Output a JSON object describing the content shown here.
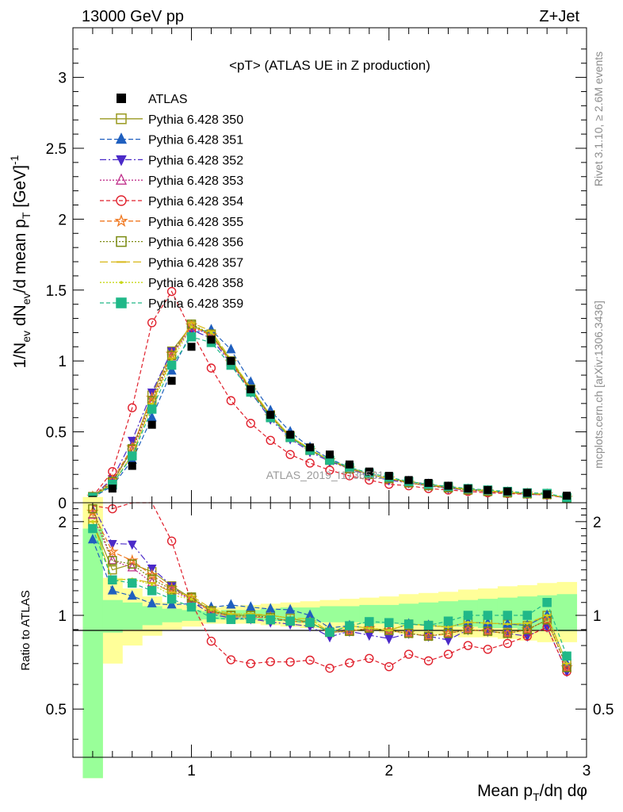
{
  "header": {
    "energy": "13000 GeV pp",
    "process": "Z+Jet"
  },
  "side_labels": {
    "rivet": "Rivet 3.1.10, ≥ 2.6M events",
    "mcplots": "mcplots.cern.ch [arXiv:1306.3436]"
  },
  "chart_data": [
    {
      "type": "line",
      "title": "<pT> (ATLAS UE in Z production)",
      "watermark": "ATLAS_2019_I1736531",
      "xlabel": "Mean p_T/dη dφ",
      "ylabel": "1/N_ev dN_ev/d mean p_T [GeV]^-1",
      "xlim": [
        0.4,
        3.0
      ],
      "ylim": [
        0,
        3.35
      ],
      "yticks": [
        "0",
        "0.5",
        "1",
        "1.5",
        "2",
        "2.5",
        "3"
      ],
      "xticks": [
        "1",
        "2",
        "3"
      ],
      "legend_position": "top-left",
      "x": [
        0.5,
        0.6,
        0.7,
        0.8,
        0.9,
        1.0,
        1.1,
        1.2,
        1.3,
        1.4,
        1.5,
        1.6,
        1.7,
        1.8,
        1.9,
        2.0,
        2.1,
        2.2,
        2.3,
        2.4,
        2.5,
        2.6,
        2.7,
        2.8,
        2.9
      ],
      "reference": {
        "name": "ATLAS",
        "color": "#000000",
        "values": [
          0.02,
          0.1,
          0.26,
          0.55,
          0.86,
          1.1,
          1.15,
          1.0,
          0.8,
          0.62,
          0.48,
          0.39,
          0.34,
          0.27,
          0.22,
          0.19,
          0.16,
          0.14,
          0.12,
          0.1,
          0.09,
          0.08,
          0.07,
          0.06,
          0.05
        ]
      },
      "series": [
        {
          "name": "Pythia 6.428 350",
          "color": "#9a9a20",
          "marker": "open-square",
          "dash": "",
          "values": [
            0.04,
            0.14,
            0.38,
            0.76,
            1.07,
            1.25,
            1.19,
            1.0,
            0.8,
            0.62,
            0.47,
            0.37,
            0.3,
            0.24,
            0.2,
            0.17,
            0.15,
            0.13,
            0.11,
            0.095,
            0.085,
            0.075,
            0.065,
            0.06,
            0.035
          ]
        },
        {
          "name": "Pythia 6.428 351",
          "color": "#1f5fbf",
          "marker": "triangle-up",
          "dash": "6,3",
          "values": [
            0.035,
            0.12,
            0.3,
            0.6,
            0.93,
            1.2,
            1.22,
            1.08,
            0.85,
            0.65,
            0.5,
            0.39,
            0.31,
            0.25,
            0.2,
            0.17,
            0.15,
            0.13,
            0.11,
            0.095,
            0.085,
            0.075,
            0.065,
            0.06,
            0.035
          ]
        },
        {
          "name": "Pythia 6.428 352",
          "color": "#4b2ac8",
          "marker": "triangle-down",
          "dash": "8,3,2,3",
          "values": [
            0.045,
            0.17,
            0.44,
            0.78,
            1.07,
            1.22,
            1.16,
            0.98,
            0.78,
            0.59,
            0.45,
            0.36,
            0.29,
            0.24,
            0.19,
            0.16,
            0.14,
            0.12,
            0.1,
            0.09,
            0.08,
            0.07,
            0.06,
            0.055,
            0.033
          ]
        },
        {
          "name": "Pythia 6.428 353",
          "color": "#c0308c",
          "marker": "open-triangle",
          "dash": "2,2",
          "values": [
            0.042,
            0.15,
            0.37,
            0.7,
            1.03,
            1.24,
            1.18,
            0.99,
            0.79,
            0.61,
            0.46,
            0.37,
            0.3,
            0.24,
            0.2,
            0.17,
            0.14,
            0.12,
            0.105,
            0.09,
            0.08,
            0.07,
            0.063,
            0.058,
            0.034
          ]
        },
        {
          "name": "Pythia 6.428 354",
          "color": "#e0202c",
          "marker": "open-circle",
          "dash": "5,3",
          "values": [
            0.045,
            0.22,
            0.67,
            1.27,
            1.49,
            1.21,
            0.95,
            0.72,
            0.56,
            0.44,
            0.34,
            0.28,
            0.23,
            0.19,
            0.16,
            0.13,
            0.12,
            0.1,
            0.09,
            0.08,
            0.07,
            0.065,
            0.06,
            0.055,
            0.033
          ]
        },
        {
          "name": "Pythia 6.428 355",
          "color": "#f07820",
          "marker": "open-star",
          "dash": "6,3",
          "values": [
            0.043,
            0.16,
            0.39,
            0.74,
            1.05,
            1.25,
            1.18,
            0.99,
            0.79,
            0.61,
            0.46,
            0.37,
            0.3,
            0.24,
            0.2,
            0.17,
            0.14,
            0.12,
            0.105,
            0.09,
            0.08,
            0.07,
            0.063,
            0.058,
            0.034
          ]
        },
        {
          "name": "Pythia 6.428 356",
          "color": "#7a8a10",
          "marker": "open-square",
          "dash": "2,2",
          "values": [
            0.044,
            0.15,
            0.38,
            0.72,
            1.04,
            1.26,
            1.19,
            1.0,
            0.8,
            0.61,
            0.46,
            0.37,
            0.3,
            0.24,
            0.2,
            0.17,
            0.14,
            0.12,
            0.105,
            0.09,
            0.08,
            0.07,
            0.063,
            0.058,
            0.034
          ]
        },
        {
          "name": "Pythia 6.428 357",
          "color": "#d8b818",
          "marker": "dash",
          "dash": "10,4",
          "values": [
            0.04,
            0.13,
            0.34,
            0.7,
            1.02,
            1.27,
            1.21,
            1.01,
            0.81,
            0.62,
            0.47,
            0.38,
            0.3,
            0.25,
            0.2,
            0.17,
            0.15,
            0.13,
            0.11,
            0.095,
            0.085,
            0.075,
            0.066,
            0.06,
            0.035
          ]
        },
        {
          "name": "Pythia 6.428 358",
          "color": "#c8d818",
          "marker": "dot",
          "dash": "2,2",
          "values": [
            0.04,
            0.13,
            0.34,
            0.69,
            1.0,
            1.24,
            1.2,
            1.01,
            0.81,
            0.62,
            0.47,
            0.38,
            0.3,
            0.25,
            0.2,
            0.17,
            0.15,
            0.13,
            0.11,
            0.095,
            0.085,
            0.075,
            0.066,
            0.06,
            0.035
          ]
        },
        {
          "name": "Pythia 6.428 359",
          "color": "#20b888",
          "marker": "square",
          "dash": "5,3",
          "values": [
            0.038,
            0.13,
            0.33,
            0.66,
            0.97,
            1.17,
            1.13,
            0.97,
            0.78,
            0.6,
            0.46,
            0.37,
            0.3,
            0.25,
            0.21,
            0.18,
            0.15,
            0.13,
            0.115,
            0.1,
            0.09,
            0.08,
            0.07,
            0.066,
            0.037
          ]
        }
      ]
    },
    {
      "type": "line",
      "ylabel": "Ratio to ATLAS",
      "xlim": [
        0.4,
        3.0
      ],
      "ylim": [
        0.35,
        2.3
      ],
      "yticks": [
        "0.5",
        "1",
        "2"
      ],
      "xticks": [
        "1",
        "2",
        "3"
      ],
      "band_x_edges": [
        0.45,
        0.55,
        0.65,
        0.75,
        0.85,
        0.95,
        1.05,
        1.15,
        1.25,
        1.35,
        1.45,
        1.55,
        1.65,
        1.75,
        1.85,
        1.95,
        2.05,
        2.15,
        2.25,
        2.35,
        2.45,
        2.55,
        2.65,
        2.75,
        2.85,
        2.95
      ],
      "band_stat_low": [
        0.3,
        0.88,
        0.9,
        0.93,
        0.95,
        0.96,
        0.97,
        0.97,
        0.97,
        0.96,
        0.96,
        0.95,
        0.95,
        0.95,
        0.94,
        0.94,
        0.93,
        0.93,
        0.92,
        0.92,
        0.91,
        0.91,
        0.9,
        0.9,
        0.89
      ],
      "band_stat_high": [
        1.9,
        1.12,
        1.1,
        1.07,
        1.05,
        1.04,
        1.03,
        1.04,
        1.04,
        1.05,
        1.06,
        1.06,
        1.07,
        1.07,
        1.08,
        1.08,
        1.09,
        1.1,
        1.11,
        1.12,
        1.13,
        1.14,
        1.15,
        1.16,
        1.17
      ],
      "band_syst_low": [
        0.3,
        0.7,
        0.8,
        0.86,
        0.9,
        0.92,
        0.94,
        0.94,
        0.94,
        0.93,
        0.92,
        0.91,
        0.9,
        0.9,
        0.89,
        0.88,
        0.87,
        0.87,
        0.86,
        0.85,
        0.85,
        0.84,
        0.83,
        0.82,
        0.82
      ],
      "band_syst_high": [
        2.4,
        1.32,
        1.22,
        1.15,
        1.1,
        1.08,
        1.06,
        1.07,
        1.08,
        1.09,
        1.1,
        1.11,
        1.12,
        1.13,
        1.14,
        1.15,
        1.17,
        1.18,
        1.19,
        1.21,
        1.22,
        1.24,
        1.25,
        1.27,
        1.28
      ],
      "reference_line": 1
    }
  ]
}
